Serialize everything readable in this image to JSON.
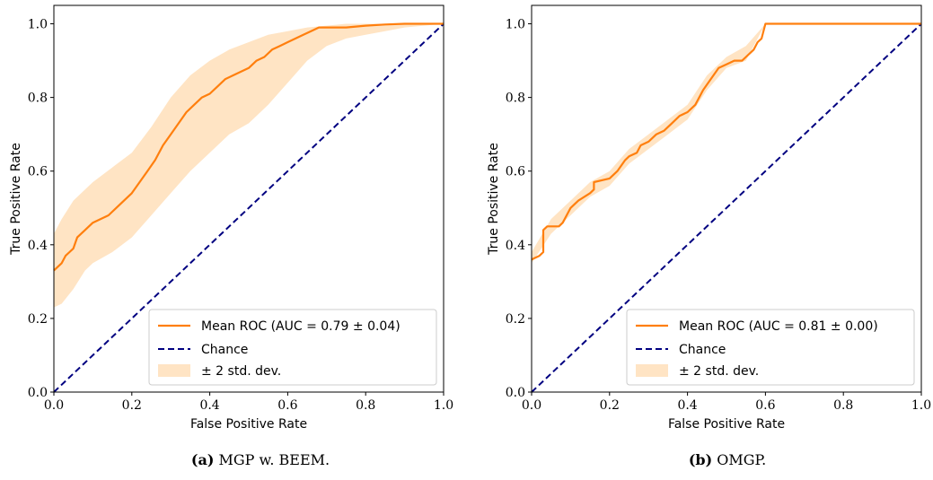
{
  "colors": {
    "mean": "#ff7f0e",
    "band": "#ffe4c4",
    "chance": "#000080",
    "axis": "#000000"
  },
  "chart_data": [
    {
      "type": "line",
      "xlabel": "False Positive Rate",
      "ylabel": "True Positive Rate",
      "xlim": [
        0,
        1
      ],
      "ylim": [
        0,
        1.05
      ],
      "xticks": [
        "0.0",
        "0.2",
        "0.4",
        "0.6",
        "0.8",
        "1.0"
      ],
      "yticks": [
        "0.0",
        "0.2",
        "0.4",
        "0.6",
        "0.8",
        "1.0"
      ],
      "legend_position": "bottom-right",
      "legend": [
        "Mean ROC (AUC = 0.79 ± 0.04)",
        "Chance",
        "± 2 std. dev."
      ],
      "caption_label": "(a)",
      "caption_text": "MGP w. BEEM.",
      "series": [
        {
          "name": "Mean ROC (AUC = 0.79 ± 0.04)",
          "x": [
            0,
            0.01,
            0.02,
            0.03,
            0.04,
            0.05,
            0.06,
            0.08,
            0.1,
            0.12,
            0.14,
            0.16,
            0.18,
            0.2,
            0.22,
            0.24,
            0.26,
            0.28,
            0.3,
            0.32,
            0.34,
            0.36,
            0.38,
            0.4,
            0.42,
            0.44,
            0.46,
            0.48,
            0.5,
            0.52,
            0.54,
            0.56,
            0.58,
            0.6,
            0.62,
            0.64,
            0.66,
            0.68,
            0.7,
            0.75,
            0.8,
            0.85,
            0.9,
            0.95,
            1.0
          ],
          "y": [
            0.33,
            0.34,
            0.35,
            0.37,
            0.38,
            0.39,
            0.42,
            0.44,
            0.46,
            0.47,
            0.48,
            0.5,
            0.52,
            0.54,
            0.57,
            0.6,
            0.63,
            0.67,
            0.7,
            0.73,
            0.76,
            0.78,
            0.8,
            0.81,
            0.83,
            0.85,
            0.86,
            0.87,
            0.88,
            0.9,
            0.91,
            0.93,
            0.94,
            0.95,
            0.96,
            0.97,
            0.98,
            0.99,
            0.99,
            0.99,
            0.995,
            0.998,
            1.0,
            1.0,
            1.0
          ]
        },
        {
          "name": "Chance",
          "x": [
            0,
            1
          ],
          "y": [
            0,
            1
          ]
        }
      ],
      "band": {
        "name": "± 2 std. dev.",
        "x": [
          0,
          0.02,
          0.05,
          0.08,
          0.1,
          0.15,
          0.2,
          0.25,
          0.3,
          0.35,
          0.4,
          0.45,
          0.5,
          0.55,
          0.6,
          0.65,
          0.7,
          0.75,
          0.8,
          0.85,
          0.9,
          0.95,
          1.0
        ],
        "upper": [
          0.43,
          0.47,
          0.52,
          0.55,
          0.57,
          0.61,
          0.65,
          0.72,
          0.8,
          0.86,
          0.9,
          0.93,
          0.95,
          0.97,
          0.98,
          0.99,
          0.995,
          1.0,
          1.0,
          1.0,
          1.0,
          1.0,
          1.0
        ],
        "lower": [
          0.23,
          0.24,
          0.28,
          0.33,
          0.35,
          0.38,
          0.42,
          0.48,
          0.54,
          0.6,
          0.65,
          0.7,
          0.73,
          0.78,
          0.84,
          0.9,
          0.94,
          0.96,
          0.97,
          0.98,
          0.99,
          0.995,
          1.0
        ]
      }
    },
    {
      "type": "line",
      "xlabel": "False Positive Rate",
      "ylabel": "True Positive Rate",
      "xlim": [
        0,
        1
      ],
      "ylim": [
        0,
        1.05
      ],
      "xticks": [
        "0.0",
        "0.2",
        "0.4",
        "0.6",
        "0.8",
        "1.0"
      ],
      "yticks": [
        "0.0",
        "0.2",
        "0.4",
        "0.6",
        "0.8",
        "1.0"
      ],
      "legend_position": "bottom-right",
      "legend": [
        "Mean ROC (AUC = 0.81 ± 0.00)",
        "Chance",
        "± 2 std. dev."
      ],
      "caption_label": "(b)",
      "caption_text": "OMGP.",
      "series": [
        {
          "name": "Mean ROC (AUC = 0.81 ± 0.00)",
          "x": [
            0,
            0.02,
            0.03,
            0.03,
            0.04,
            0.07,
            0.08,
            0.1,
            0.12,
            0.15,
            0.16,
            0.16,
            0.2,
            0.22,
            0.24,
            0.25,
            0.27,
            0.28,
            0.3,
            0.32,
            0.34,
            0.36,
            0.38,
            0.4,
            0.42,
            0.44,
            0.46,
            0.48,
            0.5,
            0.52,
            0.54,
            0.55,
            0.57,
            0.58,
            0.59,
            0.6,
            0.7,
            0.8,
            0.9,
            1.0
          ],
          "y": [
            0.36,
            0.37,
            0.38,
            0.44,
            0.45,
            0.45,
            0.46,
            0.5,
            0.52,
            0.54,
            0.55,
            0.57,
            0.58,
            0.6,
            0.63,
            0.64,
            0.65,
            0.67,
            0.68,
            0.7,
            0.71,
            0.73,
            0.75,
            0.76,
            0.78,
            0.82,
            0.85,
            0.88,
            0.89,
            0.9,
            0.9,
            0.91,
            0.93,
            0.95,
            0.96,
            1.0,
            1.0,
            1.0,
            1.0,
            1.0
          ]
        },
        {
          "name": "Chance",
          "x": [
            0,
            1
          ],
          "y": [
            0,
            1
          ]
        }
      ],
      "band": {
        "name": "± 2 std. dev.",
        "x": [
          0,
          0.05,
          0.1,
          0.15,
          0.2,
          0.25,
          0.3,
          0.35,
          0.4,
          0.45,
          0.5,
          0.55,
          0.6,
          0.7,
          0.8,
          0.9,
          1.0
        ],
        "upper": [
          0.38,
          0.47,
          0.52,
          0.57,
          0.6,
          0.66,
          0.7,
          0.74,
          0.78,
          0.86,
          0.91,
          0.94,
          1.0,
          1.0,
          1.0,
          1.0,
          1.0
        ],
        "lower": [
          0.35,
          0.43,
          0.48,
          0.53,
          0.56,
          0.62,
          0.66,
          0.7,
          0.74,
          0.82,
          0.88,
          0.9,
          1.0,
          1.0,
          1.0,
          1.0,
          1.0
        ]
      }
    }
  ]
}
